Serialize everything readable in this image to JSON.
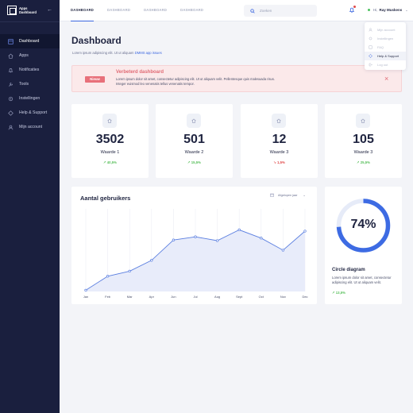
{
  "brand": {
    "line1": "Apps",
    "line2": "Dashboard"
  },
  "sidebar": {
    "collapse_icon": "chevron-left-icon",
    "items": [
      {
        "label": "Dashboard",
        "icon": "dashboard-icon",
        "active": true
      },
      {
        "label": "Apps",
        "icon": "home-icon"
      },
      {
        "label": "Notificaties",
        "icon": "bell-icon"
      },
      {
        "label": "Tools",
        "icon": "tools-icon"
      },
      {
        "label": "Instellingen",
        "icon": "gear-icon"
      },
      {
        "label": "Help & Support",
        "icon": "help-icon"
      },
      {
        "label": "Mijn account",
        "icon": "user-icon"
      }
    ]
  },
  "topbar": {
    "tabs": [
      "DASHBOARD",
      "DASHBOARD",
      "DASHBOARD",
      "DASHBOARD"
    ],
    "active_tab": 0,
    "search_placeholder": "Zoeken",
    "greeting": "Hi,",
    "user_name": "Ray Muskens"
  },
  "dropdown": {
    "items": [
      {
        "label": "Mijn account",
        "icon": "user-icon"
      },
      {
        "label": "Instellingen",
        "icon": "gear-icon"
      },
      {
        "label": "FAQ",
        "icon": "faq-icon"
      },
      {
        "label": "Help & Support",
        "icon": "help-icon",
        "active": true
      },
      {
        "label": "Log out",
        "icon": "logout-icon"
      }
    ]
  },
  "page": {
    "title": "Dashboard",
    "subtitle": "Lorem ipsum adipiscing elit. Ut ut aliquam",
    "subtitle_link": "DMMS app issues"
  },
  "alert": {
    "badge": "Nieuw",
    "title": "Verbeterd dashboard",
    "text": "Lorem ipsum dolor sit amet, consectetur adipiscing elit. Ut ut aliquam velit. Pellentesque quis malesuada risus. Integer euismod leo venenatis tellus venenatis tempor."
  },
  "stats": [
    {
      "value": "3502",
      "label": "Waarde 1",
      "change": "40,5%",
      "direction": "up"
    },
    {
      "value": "501",
      "label": "Waarde 2",
      "change": "15,5%",
      "direction": "up"
    },
    {
      "value": "12",
      "label": "Waarde 3",
      "change": "1,5%",
      "direction": "down"
    },
    {
      "value": "105",
      "label": "Waarde 3",
      "change": "25,5%",
      "direction": "up"
    }
  ],
  "users_chart": {
    "title": "Aantal gebruikers",
    "period": "Afgelopen jaar"
  },
  "chart_data": {
    "type": "area",
    "categories": [
      "Jan",
      "Feb",
      "Mar",
      "Apr",
      "Jun",
      "Jul",
      "Aug",
      "Sept",
      "Oct",
      "Nov",
      "Dec"
    ],
    "values": [
      2,
      24,
      32,
      49,
      81,
      86,
      80,
      97,
      84,
      65,
      95
    ],
    "ylim": [
      0,
      130
    ],
    "grid": "vertical",
    "color": "#5b7fe0",
    "fill": "#e8ecfa"
  },
  "circle": {
    "percent": 74,
    "label": "74%",
    "title": "Circle diagram",
    "text": "Lorem ipsum dolor sit amet, consectetur adipiscing elit. Ut ut aliquam velit.",
    "change": "13,5%",
    "direction": "up",
    "color": "#3d6be3",
    "track": "#e6ebf8"
  }
}
